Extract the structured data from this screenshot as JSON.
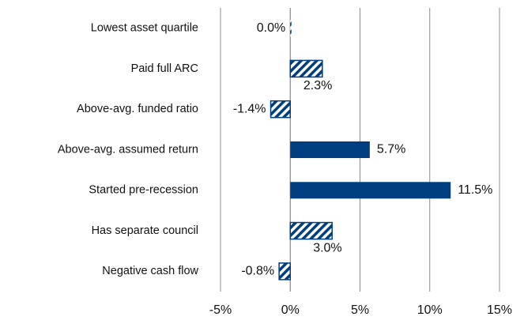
{
  "chart_data": {
    "type": "bar",
    "orientation": "horizontal",
    "categories": [
      "Lowest asset quartile",
      "Paid full ARC",
      "Above-avg. funded ratio",
      "Above-avg. assumed return",
      "Started pre-recession",
      "Has separate council",
      "Negative cash flow"
    ],
    "values": [
      0.0,
      2.3,
      -1.4,
      5.7,
      11.5,
      3.0,
      -0.8
    ],
    "value_labels": [
      "0.0%",
      "2.3%",
      "-1.4%",
      "5.7%",
      "11.5%",
      "3.0%",
      "-0.8%"
    ],
    "hatched": [
      true,
      true,
      true,
      false,
      false,
      true,
      true
    ],
    "color": "#003f7f",
    "xlim": [
      -5,
      15
    ],
    "xticks": [
      {
        "value": -5,
        "label": "-5%"
      },
      {
        "value": 0,
        "label": "0%"
      },
      {
        "value": 5,
        "label": "5%"
      },
      {
        "value": 10,
        "label": "10%"
      },
      {
        "value": 15,
        "label": "15%"
      }
    ],
    "grid": true
  }
}
